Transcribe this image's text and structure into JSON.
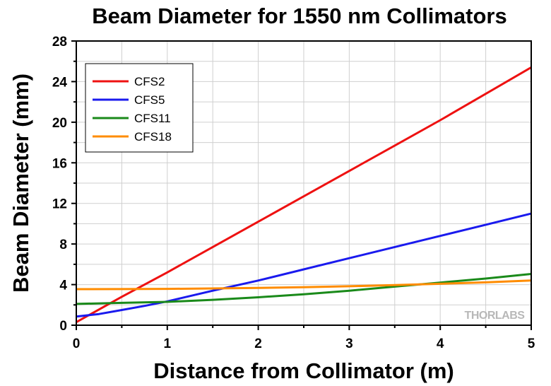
{
  "chart_data": {
    "type": "line",
    "title": "Beam Diameter for 1550 nm Collimators",
    "xlabel": "Distance from Collimator (m)",
    "ylabel": "Beam Diameter (mm)",
    "xlim": [
      0,
      5
    ],
    "ylim": [
      0,
      28
    ],
    "xticks": [
      "0",
      "1",
      "2",
      "3",
      "4",
      "5"
    ],
    "yticks": [
      "0",
      "4",
      "8",
      "12",
      "16",
      "20",
      "24",
      "28"
    ],
    "grid": true,
    "legend_position": "top-left",
    "series": [
      {
        "name": "CFS2",
        "color": "#ee1111",
        "x": [
          0,
          0.5,
          1,
          1.5,
          2,
          2.5,
          3,
          3.5,
          4,
          4.5,
          5
        ],
        "y": [
          0.3,
          2.8,
          5.2,
          7.7,
          10.2,
          12.7,
          15.2,
          17.7,
          20.2,
          22.8,
          25.4
        ]
      },
      {
        "name": "CFS5",
        "color": "#1a1aee",
        "x": [
          0,
          0.25,
          0.5,
          0.75,
          1,
          1.5,
          2,
          2.5,
          3,
          3.5,
          4,
          4.5,
          5
        ],
        "y": [
          0.85,
          1.1,
          1.5,
          1.9,
          2.35,
          3.4,
          4.4,
          5.5,
          6.6,
          7.7,
          8.8,
          9.9,
          11.0
        ]
      },
      {
        "name": "CFS11",
        "color": "#1a8a1a",
        "x": [
          0,
          0.5,
          1,
          1.5,
          2,
          2.5,
          3,
          3.5,
          4,
          4.5,
          5
        ],
        "y": [
          2.1,
          2.2,
          2.3,
          2.5,
          2.75,
          3.05,
          3.4,
          3.8,
          4.2,
          4.6,
          5.05
        ]
      },
      {
        "name": "CFS18",
        "color": "#ff8c00",
        "x": [
          0,
          0.5,
          1,
          1.5,
          2,
          2.5,
          3,
          3.5,
          4,
          4.5,
          5
        ],
        "y": [
          3.55,
          3.56,
          3.58,
          3.62,
          3.68,
          3.75,
          3.84,
          3.95,
          4.08,
          4.22,
          4.4
        ]
      }
    ]
  },
  "watermark": "THORLABS"
}
